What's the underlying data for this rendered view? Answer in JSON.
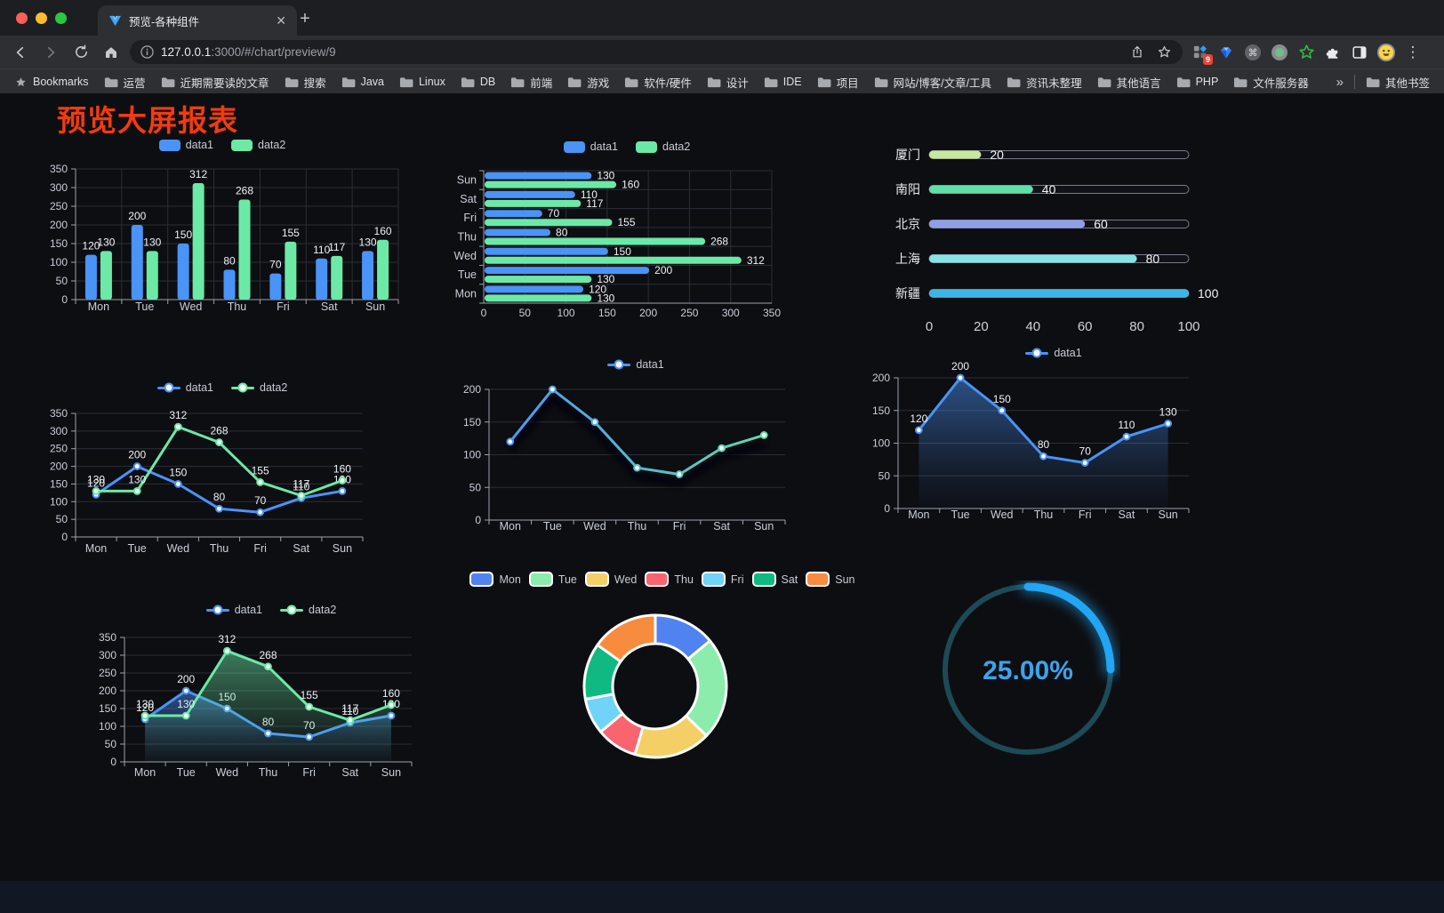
{
  "browser": {
    "tab_title": "预览-各种组件",
    "url_host": "127.0.0.1",
    "url_rest": ":3000/#/chart/preview/9",
    "extension_badge": "9",
    "bookmarks_label": "Bookmarks",
    "folders": [
      "运营",
      "近期需要读的文章",
      "搜索",
      "Java",
      "Linux",
      "DB",
      "前端",
      "游戏",
      "软件/硬件",
      "设计",
      "IDE",
      "项目",
      "网站/博客/文章/工具",
      "资讯未整理",
      "其他语言",
      "PHP",
      "文件服务器"
    ],
    "overflow": "»",
    "other_bookmarks": "其他书签"
  },
  "page": {
    "title": "预览大屏报表"
  },
  "colors": {
    "data1_blue": "#4a93f7",
    "data2_green": "#6ce9a6",
    "title_red": "#f23b10",
    "axis": "#9aa3af",
    "grid": "#2b2e37"
  },
  "chart_data": [
    {
      "id": "bar-vertical",
      "type": "bar",
      "categories": [
        "Mon",
        "Tue",
        "Wed",
        "Thu",
        "Fri",
        "Sat",
        "Sun"
      ],
      "series": [
        {
          "name": "data1",
          "color": "#4a93f7",
          "values": [
            120,
            200,
            150,
            80,
            70,
            110,
            130
          ]
        },
        {
          "name": "data2",
          "color": "#6ce9a6",
          "values": [
            130,
            130,
            312,
            268,
            155,
            117,
            160
          ]
        }
      ],
      "yticks": [
        0,
        50,
        100,
        150,
        200,
        250,
        300,
        350
      ],
      "ylim": [
        0,
        350
      ],
      "legend_position": "top"
    },
    {
      "id": "bar-horizontal",
      "type": "bar",
      "orientation": "horizontal",
      "categories": [
        "Mon",
        "Tue",
        "Wed",
        "Thu",
        "Fri",
        "Sat",
        "Sun"
      ],
      "series": [
        {
          "name": "data1",
          "color": "#4a93f7",
          "values": [
            120,
            200,
            150,
            80,
            70,
            110,
            130
          ]
        },
        {
          "name": "data2",
          "color": "#6ce9a6",
          "values": [
            130,
            130,
            312,
            268,
            155,
            117,
            160
          ]
        }
      ],
      "xticks": [
        0,
        50,
        100,
        150,
        200,
        250,
        300,
        350
      ],
      "xlim": [
        0,
        350
      ],
      "legend_position": "top"
    },
    {
      "id": "progress-bars",
      "type": "bar",
      "subtype": "progress",
      "categories": [
        "厦门",
        "南阳",
        "北京",
        "上海",
        "新疆"
      ],
      "values": [
        20,
        40,
        60,
        80,
        100
      ],
      "bar_colors": [
        "#c8e89c",
        "#5fe0a8",
        "#8f9fe6",
        "#86e4e6",
        "#3eb4e6"
      ],
      "xticks": [
        0,
        20,
        40,
        60,
        80,
        100
      ],
      "xlim": [
        0,
        100
      ]
    },
    {
      "id": "line-two-series",
      "type": "line",
      "categories": [
        "Mon",
        "Tue",
        "Wed",
        "Thu",
        "Fri",
        "Sat",
        "Sun"
      ],
      "series": [
        {
          "name": "data1",
          "color": "#4a93f7",
          "values": [
            120,
            200,
            150,
            80,
            70,
            110,
            130
          ]
        },
        {
          "name": "data2",
          "color": "#6ce9a6",
          "values": [
            130,
            130,
            312,
            268,
            155,
            117,
            160
          ]
        }
      ],
      "yticks": [
        0,
        50,
        100,
        150,
        200,
        250,
        300,
        350
      ],
      "ylim": [
        0,
        350
      ],
      "point_labels": true
    },
    {
      "id": "line-gradient",
      "type": "line",
      "categories": [
        "Mon",
        "Tue",
        "Wed",
        "Thu",
        "Fri",
        "Sat",
        "Sun"
      ],
      "series": [
        {
          "name": "data1",
          "color": "#4a93f7",
          "color_end": "#5fe0a8",
          "values": [
            120,
            200,
            150,
            80,
            70,
            110,
            130
          ]
        }
      ],
      "yticks": [
        0,
        50,
        100,
        150,
        200
      ],
      "ylim": [
        0,
        200
      ],
      "point_labels": false
    },
    {
      "id": "area-single",
      "type": "area",
      "categories": [
        "Mon",
        "Tue",
        "Wed",
        "Thu",
        "Fri",
        "Sat",
        "Sun"
      ],
      "series": [
        {
          "name": "data1",
          "color": "#4a93f7",
          "values": [
            120,
            200,
            150,
            80,
            70,
            110,
            130
          ]
        }
      ],
      "yticks": [
        0,
        50,
        100,
        150,
        200
      ],
      "ylim": [
        0,
        200
      ],
      "point_labels": true
    },
    {
      "id": "area-two-series",
      "type": "area",
      "categories": [
        "Mon",
        "Tue",
        "Wed",
        "Thu",
        "Fri",
        "Sat",
        "Sun"
      ],
      "series": [
        {
          "name": "data1",
          "color": "#4a93f7",
          "values": [
            120,
            200,
            150,
            80,
            70,
            110,
            130
          ]
        },
        {
          "name": "data2",
          "color": "#6ce9a6",
          "values": [
            130,
            130,
            312,
            268,
            155,
            117,
            160
          ]
        }
      ],
      "yticks": [
        0,
        50,
        100,
        150,
        200,
        250,
        300,
        350
      ],
      "ylim": [
        0,
        350
      ],
      "point_labels": true
    },
    {
      "id": "donut",
      "type": "pie",
      "categories": [
        "Mon",
        "Tue",
        "Wed",
        "Thu",
        "Fri",
        "Sat",
        "Sun"
      ],
      "values": [
        120,
        200,
        150,
        80,
        70,
        110,
        130
      ],
      "slice_colors": [
        "#5083ef",
        "#8cecab",
        "#f3cf66",
        "#f9646f",
        "#70d3f7",
        "#10b981",
        "#f78c3f"
      ]
    },
    {
      "id": "gauge",
      "type": "gauge",
      "value": 25,
      "max": 100,
      "label": "25.00%",
      "active_color": "#22a5f2",
      "track_color": "#1d4a57",
      "text_color": "#3ba4ec"
    }
  ]
}
